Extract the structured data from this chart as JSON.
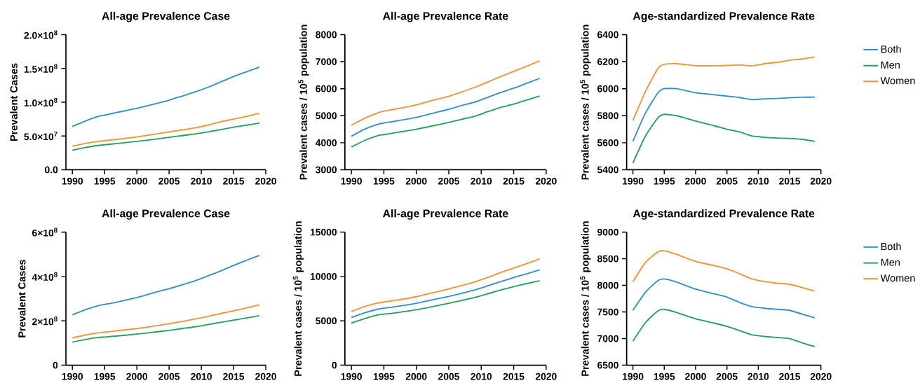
{
  "chart_data": [
    {
      "type": "line",
      "title": "All-age Prevalence Case",
      "ylabel": "Prevalent Cases",
      "x": [
        1990,
        1992,
        1994,
        1995,
        1997,
        2000,
        2003,
        2005,
        2007,
        2009,
        2011,
        2013,
        2015,
        2017,
        2019
      ],
      "xlim": [
        1989,
        2020
      ],
      "xticks": [
        1990,
        1995,
        2000,
        2005,
        2010,
        2015,
        2020
      ],
      "ylim": [
        0,
        200000000
      ],
      "yticks": [
        {
          "value": 0,
          "label": "0.0"
        },
        {
          "value": 50000000,
          "label": "5.0×10$^{7}$"
        },
        {
          "value": 100000000,
          "label": "1.0×10$^{8}$"
        },
        {
          "value": 150000000,
          "label": "1.5×10$^{8}$"
        },
        {
          "value": 200000000,
          "label": "2.0×10$^{8}$"
        }
      ],
      "grid": false,
      "series": [
        {
          "color": "#2f8fcf",
          "values": [
            64000000,
            72000000,
            79000000,
            81000000,
            85000000,
            91000000,
            98000000,
            103000000,
            109000000,
            115000000,
            122000000,
            130000000,
            138000000,
            145000000,
            152000000
          ]
        },
        {
          "color": "#1fa45a",
          "values": [
            29000000,
            33000000,
            36000000,
            37000000,
            39000000,
            42000000,
            45500000,
            48000000,
            50500000,
            53000000,
            56000000,
            59500000,
            63000000,
            66000000,
            69000000
          ]
        },
        {
          "color": "#f7922f",
          "values": [
            35000000,
            39000000,
            42000000,
            43000000,
            45000000,
            48500000,
            53000000,
            56000000,
            59000000,
            62000000,
            66000000,
            71000000,
            75000000,
            79000000,
            83500000
          ]
        }
      ]
    },
    {
      "type": "line",
      "title": "All-age Prevalence Rate",
      "ylabel": "Prevalent cases / 10$^{5}$ population",
      "x": [
        1990,
        1992,
        1994,
        1995,
        1997,
        2000,
        2003,
        2005,
        2007,
        2009,
        2011,
        2013,
        2015,
        2017,
        2019
      ],
      "xlim": [
        1989,
        2020
      ],
      "xticks": [
        1990,
        1995,
        2000,
        2005,
        2010,
        2015,
        2020
      ],
      "ylim": [
        3000,
        8000
      ],
      "yticks": [
        3000,
        4000,
        5000,
        6000,
        7000,
        8000
      ],
      "grid": false,
      "series": [
        {
          "color": "#2f8fcf",
          "values": [
            4240,
            4500,
            4680,
            4730,
            4810,
            4940,
            5120,
            5240,
            5380,
            5500,
            5680,
            5860,
            6020,
            6200,
            6380
          ]
        },
        {
          "color": "#1fa45a",
          "values": [
            3840,
            4080,
            4260,
            4300,
            4380,
            4500,
            4650,
            4750,
            4870,
            4980,
            5150,
            5310,
            5430,
            5580,
            5730
          ]
        },
        {
          "color": "#f7922f",
          "values": [
            4650,
            4900,
            5100,
            5170,
            5260,
            5400,
            5600,
            5720,
            5880,
            6050,
            6250,
            6450,
            6640,
            6830,
            7030
          ]
        }
      ]
    },
    {
      "type": "line",
      "title": "Age-standardized Prevalence Rate",
      "ylabel": "Prevalent cases / 10$^{5}$ population",
      "x": [
        1990,
        1992,
        1994,
        1995,
        1997,
        2000,
        2003,
        2005,
        2007,
        2009,
        2011,
        2013,
        2015,
        2017,
        2019
      ],
      "xlim": [
        1989,
        2020
      ],
      "xticks": [
        1990,
        1995,
        2000,
        2005,
        2010,
        2015,
        2020
      ],
      "ylim": [
        5400,
        6400
      ],
      "yticks": [
        5400,
        5600,
        5800,
        6000,
        6200,
        6400
      ],
      "grid": false,
      "legend": "right",
      "series": [
        {
          "name": "Both",
          "color": "#2f8fcf",
          "values": [
            5610,
            5820,
            5970,
            6000,
            6000,
            5970,
            5955,
            5945,
            5935,
            5920,
            5925,
            5928,
            5933,
            5937,
            5938
          ]
        },
        {
          "name": "Men",
          "color": "#1fa45a",
          "values": [
            5450,
            5650,
            5785,
            5810,
            5800,
            5760,
            5725,
            5700,
            5680,
            5650,
            5640,
            5635,
            5632,
            5625,
            5610
          ]
        },
        {
          "name": "Women",
          "color": "#f7922f",
          "values": [
            5765,
            5980,
            6150,
            6180,
            6185,
            6170,
            6170,
            6172,
            6175,
            6170,
            6185,
            6195,
            6210,
            6220,
            6235
          ]
        }
      ]
    },
    {
      "type": "line",
      "title": "All-age Prevalence Case",
      "ylabel": "Prevalent Cases",
      "x": [
        1990,
        1992,
        1994,
        1995,
        1997,
        2000,
        2003,
        2005,
        2007,
        2009,
        2011,
        2013,
        2015,
        2017,
        2019
      ],
      "xlim": [
        1989,
        2020
      ],
      "xticks": [
        1990,
        1995,
        2000,
        2005,
        2010,
        2015,
        2020
      ],
      "ylim": [
        0,
        600000000
      ],
      "yticks": [
        0,
        {
          "value": 200000000,
          "label": "2×10$^{8}$"
        },
        {
          "value": 400000000,
          "label": "4×10$^{8}$"
        },
        {
          "value": 600000000,
          "label": "6×10$^{8}$"
        }
      ],
      "grid": false,
      "series": [
        {
          "color": "#2f8fcf",
          "values": [
            227000000,
            250000000,
            268000000,
            274000000,
            285000000,
            305000000,
            330000000,
            345000000,
            362000000,
            380000000,
            402000000,
            425000000,
            450000000,
            473000000,
            495000000
          ]
        },
        {
          "color": "#1fa45a",
          "values": [
            104000000,
            116000000,
            125000000,
            127000000,
            132000000,
            140000000,
            150000000,
            157000000,
            165000000,
            173000000,
            183000000,
            193000000,
            203000000,
            213000000,
            223000000
          ]
        },
        {
          "color": "#f7922f",
          "values": [
            123000000,
            136000000,
            146000000,
            149000000,
            155000000,
            165000000,
            178000000,
            187000000,
            197000000,
            208000000,
            220000000,
            233000000,
            245000000,
            258000000,
            272000000
          ]
        }
      ]
    },
    {
      "type": "line",
      "title": "All-age Prevalence Rate",
      "ylabel": "Prevalent cases / 10$^{5}$ population",
      "x": [
        1990,
        1992,
        1994,
        1995,
        1997,
        2000,
        2003,
        2005,
        2007,
        2009,
        2011,
        2013,
        2015,
        2017,
        2019
      ],
      "xlim": [
        1989,
        2020
      ],
      "xticks": [
        1990,
        1995,
        2000,
        2005,
        2010,
        2015,
        2020
      ],
      "ylim": [
        0,
        15000
      ],
      "yticks": [
        0,
        5000,
        10000,
        15000
      ],
      "grid": false,
      "series": [
        {
          "color": "#2f8fcf",
          "values": [
            5380,
            5900,
            6300,
            6420,
            6620,
            6980,
            7450,
            7750,
            8100,
            8480,
            8950,
            9420,
            9880,
            10300,
            10750
          ]
        },
        {
          "color": "#1fa45a",
          "values": [
            4750,
            5250,
            5650,
            5760,
            5920,
            6250,
            6680,
            6980,
            7300,
            7630,
            8050,
            8480,
            8850,
            9200,
            9520
          ]
        },
        {
          "color": "#f7922f",
          "values": [
            6050,
            6600,
            7000,
            7130,
            7330,
            7720,
            8250,
            8600,
            8980,
            9380,
            9900,
            10450,
            10950,
            11450,
            12000
          ]
        }
      ]
    },
    {
      "type": "line",
      "title": "Age-standardized Prevalence Rate",
      "ylabel": "Prevalent cases / 10$^{5}$ population",
      "x": [
        1990,
        1992,
        1994,
        1995,
        1997,
        2000,
        2003,
        2005,
        2007,
        2009,
        2011,
        2013,
        2015,
        2017,
        2019
      ],
      "xlim": [
        1989,
        2020
      ],
      "xticks": [
        1990,
        1995,
        2000,
        2005,
        2010,
        2015,
        2020
      ],
      "ylim": [
        6500,
        9000
      ],
      "yticks": [
        6500,
        7000,
        7500,
        8000,
        8500,
        9000
      ],
      "grid": false,
      "legend": "right",
      "series": [
        {
          "name": "Both",
          "color": "#2f8fcf",
          "values": [
            7530,
            7870,
            8090,
            8120,
            8060,
            7930,
            7840,
            7780,
            7680,
            7600,
            7570,
            7550,
            7530,
            7460,
            7390
          ]
        },
        {
          "name": "Men",
          "color": "#1fa45a",
          "values": [
            6950,
            7300,
            7520,
            7550,
            7490,
            7370,
            7290,
            7230,
            7150,
            7070,
            7040,
            7020,
            7000,
            6920,
            6850
          ]
        },
        {
          "name": "Women",
          "color": "#f7922f",
          "values": [
            8070,
            8430,
            8630,
            8650,
            8580,
            8450,
            8370,
            8310,
            8220,
            8120,
            8070,
            8040,
            8020,
            7960,
            7890
          ]
        }
      ]
    }
  ]
}
